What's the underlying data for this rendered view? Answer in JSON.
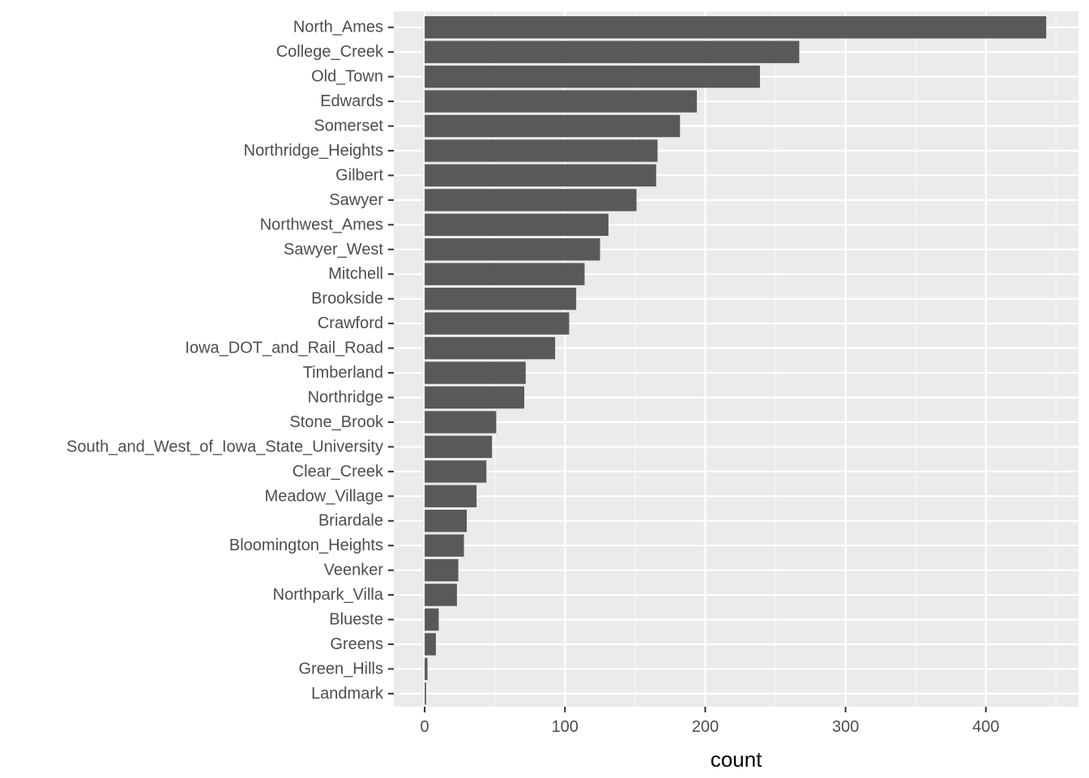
{
  "chart_data": {
    "type": "bar",
    "orientation": "horizontal",
    "categories": [
      "Landmark",
      "Green_Hills",
      "Greens",
      "Blueste",
      "Northpark_Villa",
      "Veenker",
      "Bloomington_Heights",
      "Briardale",
      "Meadow_Village",
      "Clear_Creek",
      "South_and_West_of_Iowa_State_University",
      "Stone_Brook",
      "Northridge",
      "Timberland",
      "Iowa_DOT_and_Rail_Road",
      "Crawford",
      "Brookside",
      "Mitchell",
      "Sawyer_West",
      "Northwest_Ames",
      "Sawyer",
      "Gilbert",
      "Northridge_Heights",
      "Somerset",
      "Edwards",
      "Old_Town",
      "College_Creek",
      "North_Ames"
    ],
    "values": [
      1,
      2,
      8,
      10,
      23,
      24,
      28,
      30,
      37,
      44,
      48,
      51,
      71,
      72,
      93,
      103,
      108,
      114,
      125,
      131,
      151,
      165,
      166,
      182,
      194,
      239,
      267,
      443
    ],
    "xlabel": "count",
    "ylabel": "",
    "xlim": [
      -22,
      466
    ],
    "x_ticks": [
      0,
      100,
      200,
      300,
      400
    ],
    "x_minor_ticks": [
      50,
      150,
      250,
      350,
      450
    ],
    "grid": true,
    "colors": {
      "bar": "#595959",
      "panel": "#ebebeb",
      "grid_major": "#ffffff",
      "grid_minor": "#f7f7f7",
      "tick": "#333333",
      "tick_label": "#4d4d4d",
      "axis_title": "#000000"
    }
  }
}
